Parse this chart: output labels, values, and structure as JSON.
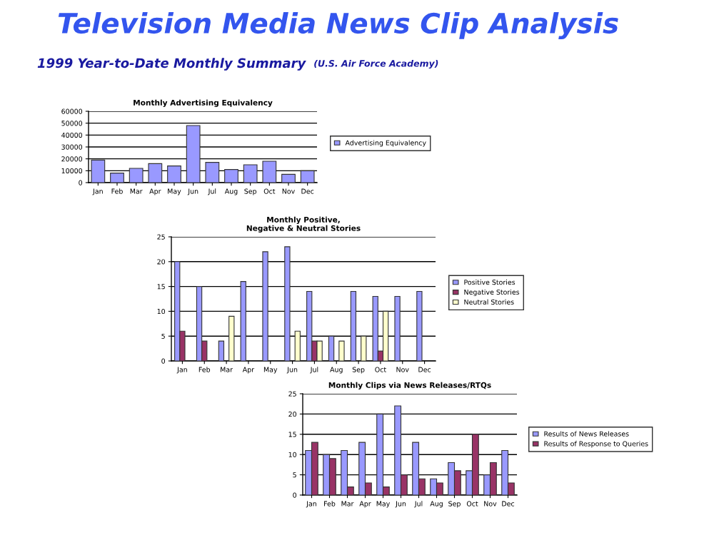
{
  "chart_data": [
    {
      "type": "bar",
      "title": "Monthly Advertising Equivalency",
      "annotations": [
        "Television Media News Clip Analysis",
        "1999 Year-to-Date Monthly Summary",
        "(U.S. Air Force Academy)"
      ],
      "categories": [
        "Jan",
        "Feb",
        "Mar",
        "Apr",
        "May",
        "Jun",
        "Jul",
        "Aug",
        "Sep",
        "Oct",
        "Nov",
        "Dec"
      ],
      "series": [
        {
          "name": "Advertising Equivalency",
          "color": "#9999ff",
          "values": [
            19000,
            8000,
            12000,
            16000,
            14000,
            48000,
            17000,
            11000,
            15000,
            18000,
            7000,
            10000
          ]
        }
      ],
      "ylim": [
        0,
        60000
      ],
      "yticks": [
        0,
        10000,
        20000,
        30000,
        40000,
        50000,
        60000
      ],
      "grid": "y",
      "legend": "right"
    },
    {
      "type": "bar",
      "title": "Monthly Positive,\nNegative & Neutral Stories",
      "categories": [
        "Jan",
        "Feb",
        "Mar",
        "Apr",
        "May",
        "Jun",
        "Jul",
        "Aug",
        "Sep",
        "Oct",
        "Nov",
        "Dec"
      ],
      "series": [
        {
          "name": "Positive Stories",
          "color": "#9999ff",
          "values": [
            20,
            15,
            4,
            16,
            22,
            23,
            14,
            5,
            14,
            13,
            13,
            14
          ]
        },
        {
          "name": "Negative Stories",
          "color": "#993366",
          "values": [
            6,
            4,
            null,
            null,
            null,
            null,
            4,
            null,
            null,
            2,
            null,
            null
          ]
        },
        {
          "name": "Neutral Stories",
          "color": "#ffffcc",
          "values": [
            null,
            null,
            9,
            null,
            null,
            6,
            4,
            4,
            5,
            10,
            null,
            null
          ]
        }
      ],
      "ylim": [
        0,
        25
      ],
      "yticks": [
        0,
        5,
        10,
        15,
        20,
        25
      ],
      "grid": "y",
      "legend": "right"
    },
    {
      "type": "bar",
      "title": "Monthly Clips via News Releases/RTQs",
      "categories": [
        "Jan",
        "Feb",
        "Mar",
        "Apr",
        "May",
        "Jun",
        "Jul",
        "Aug",
        "Sep",
        "Oct",
        "Nov",
        "Dec"
      ],
      "series": [
        {
          "name": "Results of News Releases",
          "color": "#9999ff",
          "values": [
            11,
            10,
            11,
            13,
            20,
            22,
            13,
            4,
            8,
            6,
            5,
            11
          ]
        },
        {
          "name": "Results of Response to Queries",
          "color": "#993366",
          "values": [
            13,
            9,
            2,
            3,
            2,
            5,
            4,
            3,
            6,
            15,
            8,
            3
          ]
        }
      ],
      "ylim": [
        0,
        25
      ],
      "yticks": [
        0,
        5,
        10,
        15,
        20,
        25
      ],
      "grid": "y",
      "legend": "right"
    }
  ]
}
